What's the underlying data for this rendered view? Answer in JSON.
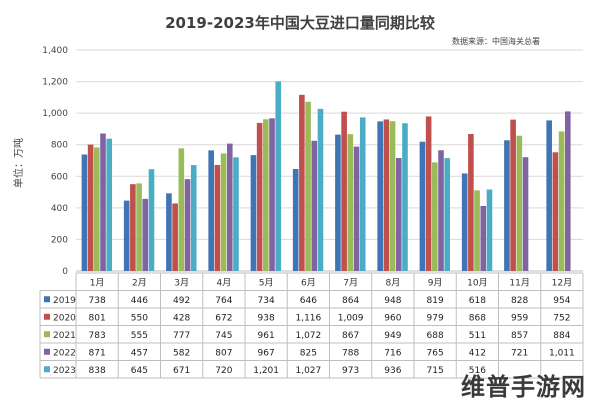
{
  "chart_data": {
    "type": "bar",
    "title": "2019-2023年中国大豆进口量同期比较",
    "source": "数据来源：中国海关总署",
    "ylabel": "单位：万吨",
    "ylim": [
      0,
      1400
    ],
    "yticks": [
      0,
      200,
      400,
      600,
      800,
      1000,
      1200,
      1400
    ],
    "categories": [
      "1月",
      "2月",
      "3月",
      "4月",
      "5月",
      "6月",
      "7月",
      "8月",
      "9月",
      "10月",
      "11月",
      "12月"
    ],
    "series": [
      {
        "name": "2019",
        "color": "#3f74b5",
        "values": [
          738,
          446,
          492,
          764,
          734,
          646,
          864,
          948,
          819,
          618,
          828,
          954
        ],
        "labels": [
          "738",
          "446",
          "492",
          "764",
          "734",
          "646",
          "864",
          "948",
          "819",
          "618",
          "828",
          "954"
        ]
      },
      {
        "name": "2020",
        "color": "#c0504d",
        "values": [
          801,
          550,
          428,
          672,
          938,
          1116,
          1009,
          960,
          979,
          868,
          959,
          752
        ],
        "labels": [
          "801",
          "550",
          "428",
          "672",
          "938",
          "1,116",
          "1,009",
          "960",
          "979",
          "868",
          "959",
          "752"
        ]
      },
      {
        "name": "2021",
        "color": "#9bbb59",
        "values": [
          783,
          555,
          777,
          745,
          961,
          1072,
          867,
          949,
          688,
          511,
          857,
          884
        ],
        "labels": [
          "783",
          "555",
          "777",
          "745",
          "961",
          "1,072",
          "867",
          "949",
          "688",
          "511",
          "857",
          "884"
        ]
      },
      {
        "name": "2022",
        "color": "#8064a2",
        "values": [
          871,
          457,
          582,
          807,
          967,
          825,
          788,
          716,
          765,
          412,
          721,
          1011
        ],
        "labels": [
          "871",
          "457",
          "582",
          "807",
          "967",
          "825",
          "788",
          "716",
          "765",
          "412",
          "721",
          "1,011"
        ]
      },
      {
        "name": "2023",
        "color": "#4bacc6",
        "values": [
          838,
          645,
          671,
          720,
          1201,
          1027,
          973,
          936,
          715,
          516,
          null,
          null
        ],
        "labels": [
          "838",
          "645",
          "671",
          "720",
          "1,201",
          "1,027",
          "973",
          "936",
          "715",
          "516",
          "",
          ""
        ]
      }
    ],
    "grid": true,
    "legend": "data-table-below"
  },
  "watermark": "维普手游网"
}
